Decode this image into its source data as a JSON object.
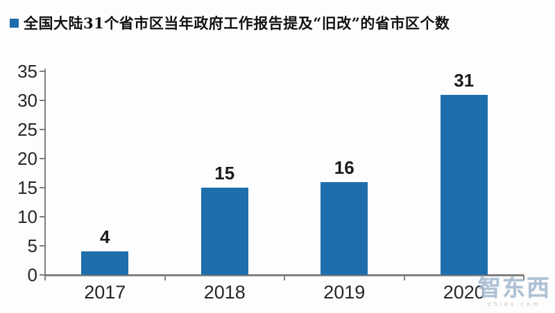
{
  "chart_data": {
    "type": "bar",
    "title": "全国大陆31个省市区当年政府工作报告提及“旧改”的省市区个数",
    "categories": [
      "2017",
      "2018",
      "2019",
      "2020"
    ],
    "values": [
      4,
      15,
      16,
      31
    ],
    "xlabel": "",
    "ylabel": "",
    "ylim": [
      0,
      35
    ],
    "ytick_step": 5,
    "grid": false,
    "legend_position": "top-left",
    "bar_color": "#1F6EAC",
    "axis_color": "#7f7f7f",
    "label_color": "#262626"
  },
  "watermark": {
    "brand": "智东西",
    "domain": "zhidx.com"
  }
}
